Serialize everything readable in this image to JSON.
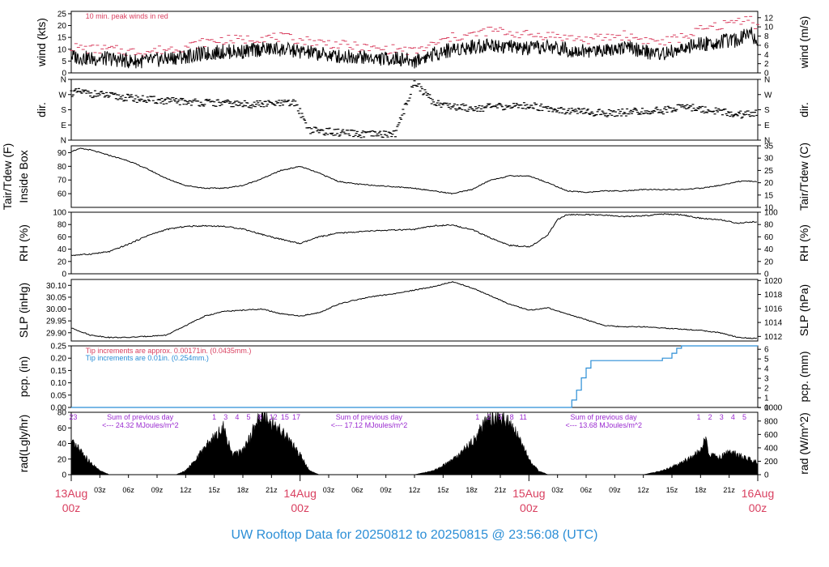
{
  "title": "UW Rooftop Data for 20250812  to  20250815 @ 23:56:08  (UTC)",
  "colors": {
    "accent_red": "#d94060",
    "blue": "#2b8ed6",
    "purple": "#9a2ad0",
    "line": "#000000"
  },
  "date_labels": [
    {
      "top": "13Aug",
      "bottom": "00z",
      "x": 0
    },
    {
      "top": "14Aug",
      "bottom": "00z",
      "x": 24
    },
    {
      "top": "15Aug",
      "bottom": "00z",
      "x": 48
    },
    {
      "top": "16Aug",
      "bottom": "00z",
      "x": 72
    }
  ],
  "hour_ticks": [
    {
      "x": 3,
      "label": "03z"
    },
    {
      "x": 6,
      "label": "06z"
    },
    {
      "x": 9,
      "label": "09z"
    },
    {
      "x": 12,
      "label": "12z"
    },
    {
      "x": 15,
      "label": "15z"
    },
    {
      "x": 18,
      "label": "18z"
    },
    {
      "x": 21,
      "label": "21z"
    },
    {
      "x": 27,
      "label": "03z"
    },
    {
      "x": 30,
      "label": "06z"
    },
    {
      "x": 33,
      "label": "09z"
    },
    {
      "x": 36,
      "label": "12z"
    },
    {
      "x": 39,
      "label": "15z"
    },
    {
      "x": 42,
      "label": "18z"
    },
    {
      "x": 45,
      "label": "21z"
    },
    {
      "x": 51,
      "label": "03z"
    },
    {
      "x": 54,
      "label": "06z"
    },
    {
      "x": 57,
      "label": "09z"
    },
    {
      "x": 60,
      "label": "12z"
    },
    {
      "x": 63,
      "label": "15z"
    },
    {
      "x": 66,
      "label": "18z"
    },
    {
      "x": 69,
      "label": "21z"
    }
  ],
  "chart_data": [
    {
      "panel": "wind",
      "type": "line",
      "ylabel_left": "wind (kts)",
      "ylabel_right": "wind (m/s)",
      "ylim": [
        0,
        26
      ],
      "yticks_left": [
        0,
        5,
        10,
        15,
        20,
        25
      ],
      "yticks_right": [
        0,
        2,
        4,
        6,
        8,
        10,
        12
      ],
      "right_scale": 0.5144,
      "annotation": "10 min. peak winds in red",
      "series": [
        {
          "role": "mean",
          "x": [
            0,
            2,
            4,
            6,
            8,
            10,
            12,
            14,
            16,
            18,
            20,
            22,
            24,
            26,
            28,
            30,
            32,
            34,
            36,
            38,
            40,
            42,
            44,
            46,
            48,
            50,
            52,
            54,
            56,
            58,
            60,
            62,
            64,
            66,
            68,
            70,
            71,
            72
          ],
          "y": [
            7,
            6,
            6,
            5,
            5,
            6,
            7,
            8,
            9,
            9,
            10,
            10,
            9,
            8,
            7,
            7,
            6,
            6,
            5,
            8,
            10,
            11,
            12,
            11,
            10,
            11,
            10,
            9,
            10,
            11,
            9,
            8,
            10,
            12,
            13,
            14,
            18,
            13
          ]
        },
        {
          "role": "peak",
          "x": [
            0,
            2,
            4,
            6,
            8,
            10,
            12,
            14,
            16,
            18,
            20,
            22,
            24,
            26,
            28,
            30,
            32,
            34,
            36,
            38,
            40,
            42,
            44,
            46,
            48,
            50,
            52,
            54,
            56,
            58,
            60,
            62,
            64,
            66,
            68,
            70,
            71,
            72
          ],
          "y": [
            11,
            10,
            10,
            9,
            9,
            10,
            11,
            13,
            14,
            14,
            15,
            15,
            14,
            13,
            12,
            11,
            10,
            10,
            9,
            12,
            15,
            16,
            18,
            17,
            16,
            16,
            15,
            14,
            15,
            16,
            14,
            13,
            15,
            18,
            20,
            22,
            24,
            19
          ]
        }
      ]
    },
    {
      "panel": "dir",
      "type": "scatter",
      "ylabel_left": "dir.",
      "ylabel_right": "dir.",
      "ylim": [
        0,
        360
      ],
      "ytick_labels": [
        "N",
        "E",
        "S",
        "W",
        "N"
      ],
      "ytick_values": [
        0,
        90,
        180,
        270,
        360
      ],
      "x": [
        0,
        1,
        2,
        3,
        4,
        6,
        8,
        10,
        12,
        14,
        16,
        18,
        20,
        22,
        23.5,
        25,
        26,
        28,
        30,
        32,
        34,
        36,
        38,
        40,
        42,
        44,
        46,
        48,
        50,
        52,
        54,
        56,
        58,
        60,
        62,
        64,
        66,
        68,
        70,
        72
      ],
      "y": [
        280,
        285,
        275,
        270,
        262,
        250,
        240,
        232,
        228,
        222,
        218,
        212,
        214,
        216,
        220,
        60,
        55,
        45,
        35,
        32,
        40,
        345,
        225,
        200,
        190,
        195,
        200,
        205,
        190,
        175,
        165,
        160,
        165,
        170,
        175,
        200,
        185,
        170,
        150,
        160
      ]
    },
    {
      "panel": "temp",
      "type": "line",
      "ylabel_left": "Tair/Tdew (F)",
      "ylabel_left2": "Inside Box",
      "ylabel_right": "Tair/Tdew (C)",
      "ylim": [
        50,
        95
      ],
      "yticks_left": [
        60,
        70,
        80,
        90
      ],
      "yticks_right": [
        10,
        15,
        20,
        25,
        30,
        35
      ],
      "x": [
        0,
        1,
        2,
        3,
        4,
        6,
        8,
        10,
        12,
        14,
        16,
        18,
        20,
        22,
        24,
        26,
        28,
        30,
        32,
        34,
        36,
        38,
        40,
        42,
        44,
        46,
        48,
        50,
        52,
        54,
        56,
        58,
        60,
        62,
        64,
        66,
        68,
        70,
        72
      ],
      "y": [
        91,
        93,
        92,
        90,
        88,
        84,
        78,
        71,
        66,
        64,
        64,
        66,
        71,
        77,
        80,
        75,
        69,
        67,
        66,
        65,
        64,
        62,
        60,
        63,
        70,
        73,
        73,
        68,
        62,
        61,
        62,
        62,
        63,
        63,
        63,
        64,
        66,
        69,
        69
      ]
    },
    {
      "panel": "rh",
      "type": "line",
      "ylabel_left": "RH (%)",
      "ylabel_right": "RH (%)",
      "ylim": [
        0,
        100
      ],
      "yticks": [
        0,
        20,
        40,
        60,
        80,
        100
      ],
      "x": [
        0,
        2,
        4,
        6,
        8,
        10,
        12,
        14,
        16,
        18,
        20,
        22,
        24,
        26,
        28,
        30,
        32,
        34,
        36,
        38,
        40,
        42,
        44,
        46,
        48,
        49,
        50,
        51,
        52,
        54,
        56,
        58,
        60,
        62,
        64,
        66,
        68,
        70,
        72
      ],
      "y": [
        30,
        32,
        36,
        48,
        62,
        72,
        77,
        78,
        77,
        73,
        64,
        56,
        49,
        60,
        66,
        68,
        70,
        71,
        72,
        78,
        79,
        72,
        58,
        46,
        44,
        52,
        64,
        88,
        96,
        96,
        95,
        93,
        94,
        97,
        96,
        90,
        88,
        82,
        85
      ]
    },
    {
      "panel": "slp",
      "type": "line",
      "ylabel_left": "SLP (inHg)",
      "ylabel_right": "SLP (hPa)",
      "ylim": [
        29.865,
        30.125
      ],
      "yticks_left": [
        29.9,
        29.95,
        30.0,
        30.05,
        30.1
      ],
      "ytick_labels_left": [
        "29.90",
        "29.95",
        "30.00",
        "30.05",
        "30.10"
      ],
      "yticks_right": [
        1012,
        1014,
        1016,
        1018,
        1020
      ],
      "x": [
        0,
        2,
        4,
        6,
        8,
        10,
        12,
        14,
        16,
        18,
        20,
        22,
        24,
        26,
        28,
        30,
        32,
        34,
        36,
        38,
        40,
        42,
        44,
        46,
        48,
        50,
        52,
        54,
        56,
        58,
        60,
        62,
        64,
        66,
        68,
        70,
        72
      ],
      "y": [
        29.92,
        29.89,
        29.88,
        29.88,
        29.885,
        29.89,
        29.93,
        29.97,
        29.99,
        29.995,
        30.0,
        29.98,
        29.97,
        29.985,
        30.02,
        30.04,
        30.055,
        30.065,
        30.08,
        30.095,
        30.115,
        30.09,
        30.055,
        30.02,
        29.995,
        30.005,
        29.98,
        29.955,
        29.93,
        29.925,
        29.925,
        29.92,
        29.915,
        29.91,
        29.9,
        29.88,
        29.875
      ]
    },
    {
      "panel": "pcp",
      "type": "line",
      "ylabel_left": "pcp. (in)",
      "ylabel_right": "pcp. (mm)",
      "ylim": [
        0,
        0.25
      ],
      "yticks_left": [
        0,
        0.05,
        0.1,
        0.15,
        0.2
      ],
      "ytick_labels_left": [
        "0.00",
        "0.05",
        "0.10",
        "0.15",
        "0.20",
        "0.25"
      ],
      "yticks_left_all": [
        0,
        0.05,
        0.1,
        0.15,
        0.2,
        0.25
      ],
      "yticks_right": [
        0,
        1,
        2,
        3,
        4,
        5,
        6
      ],
      "note_red": "Tip increments are approx. 0.00171in. (0.0435mm.)",
      "note_blue": "Tip increments are 0.01in. (0.254mm.)",
      "x": [
        0,
        52,
        52.5,
        53,
        53.5,
        54,
        54.5,
        55,
        56,
        57,
        58,
        60,
        62,
        63,
        63.5,
        64,
        66,
        68,
        70,
        72
      ],
      "y": [
        0,
        0,
        0.03,
        0.07,
        0.12,
        0.16,
        0.19,
        0.19,
        0.19,
        0.19,
        0.19,
        0.19,
        0.2,
        0.22,
        0.24,
        0.25,
        0.25,
        0.25,
        0.25,
        0.25
      ]
    },
    {
      "panel": "rad",
      "type": "area",
      "ylabel_left": "rad(Lgly/hr)",
      "ylabel_right": "rad (W/m^2)",
      "ylim": [
        0,
        80
      ],
      "yticks_left": [
        0,
        20,
        40,
        60,
        80
      ],
      "yticks_right": [
        0,
        200,
        400,
        600,
        800,
        1000
      ],
      "day_summaries": [
        {
          "x": 1.2,
          "line1": "Sum of previous day",
          "line2": "<--- 24.32 MJoules/m^2"
        },
        {
          "x": 25.2,
          "line1": "Sum of previous day",
          "line2": "<--- 17.12 MJoules/m^2"
        },
        {
          "x": 49.8,
          "line1": "Sum of previous day",
          "line2": "<--- 13.68 MJoules/m^2"
        }
      ],
      "hour_marks": [
        {
          "x": 0.2,
          "label": "23"
        },
        {
          "x": 15,
          "label": "1"
        },
        {
          "x": 16.2,
          "label": "3"
        },
        {
          "x": 17.4,
          "label": "4"
        },
        {
          "x": 18.6,
          "label": "5"
        },
        {
          "x": 19.8,
          "label": "8"
        },
        {
          "x": 21.2,
          "label": "12"
        },
        {
          "x": 22.4,
          "label": "15"
        },
        {
          "x": 23.6,
          "label": "17"
        },
        {
          "x": 42.6,
          "label": "1"
        },
        {
          "x": 43.8,
          "label": "2"
        },
        {
          "x": 45,
          "label": "5"
        },
        {
          "x": 46.2,
          "label": "8"
        },
        {
          "x": 47.4,
          "label": "11"
        },
        {
          "x": 65.8,
          "label": "1"
        },
        {
          "x": 67,
          "label": "2"
        },
        {
          "x": 68.2,
          "label": "3"
        },
        {
          "x": 69.4,
          "label": "4"
        },
        {
          "x": 70.6,
          "label": "5"
        }
      ],
      "x": [
        0,
        1,
        2,
        3,
        4,
        11,
        12,
        13,
        14,
        15,
        16,
        16.5,
        17,
        18,
        19,
        20,
        20.5,
        21,
        22,
        23,
        24,
        25,
        26,
        36,
        38,
        40,
        42,
        43,
        44,
        45,
        46,
        47,
        48,
        49,
        50,
        60,
        62,
        64,
        65,
        66,
        66.5,
        67,
        68,
        69,
        70,
        71,
        72
      ],
      "y": [
        40,
        30,
        15,
        5,
        0,
        0,
        5,
        18,
        35,
        48,
        60,
        40,
        25,
        30,
        55,
        80,
        70,
        65,
        55,
        40,
        25,
        5,
        0,
        0,
        5,
        18,
        40,
        60,
        72,
        70,
        65,
        45,
        20,
        5,
        0,
        0,
        5,
        15,
        22,
        30,
        45,
        25,
        22,
        28,
        25,
        20,
        15
      ]
    }
  ]
}
